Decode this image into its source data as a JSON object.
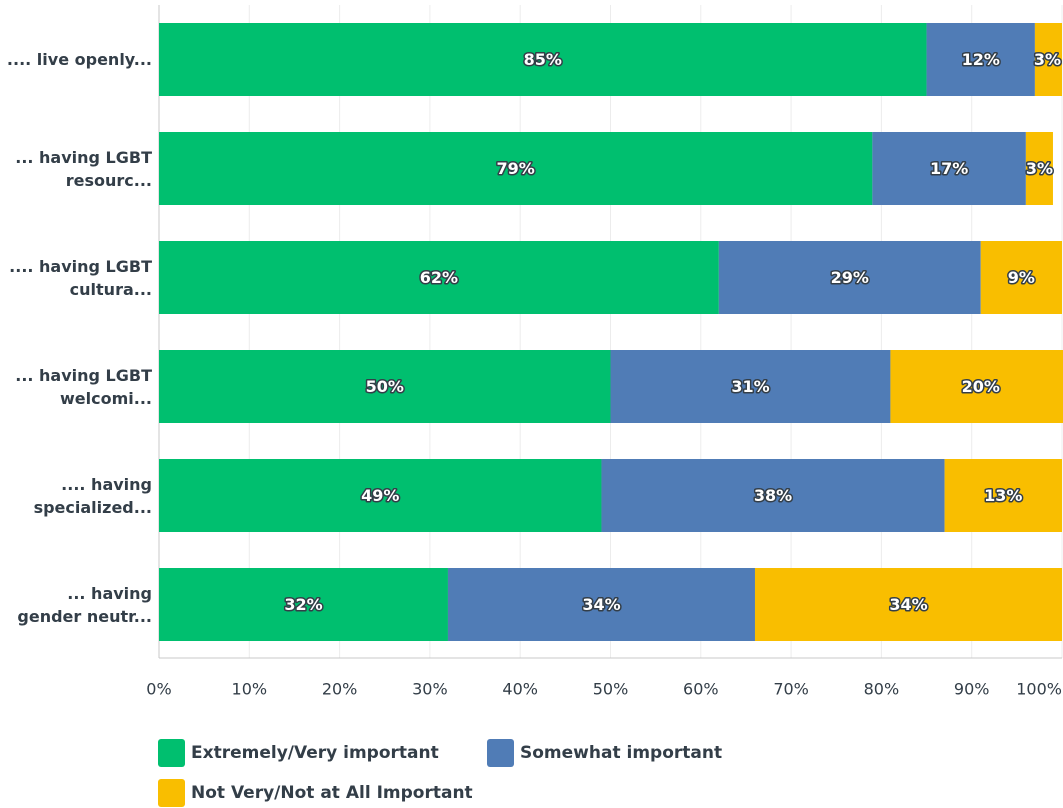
{
  "chart_data": {
    "type": "stacked-bar-horizontal",
    "categories": [
      ".... live openly...",
      "... having LGBT resourc...",
      ".... having LGBT cultura...",
      "... having LGBT welcomi...",
      ".... having specialized...",
      "... having gender neutr..."
    ],
    "series": [
      {
        "name": "Extremely/Very important",
        "color": "#00bf6f",
        "values": [
          85,
          79,
          62,
          50,
          49,
          32
        ],
        "value_labels": [
          "85%",
          "79%",
          "62%",
          "50%",
          "49%",
          "32%"
        ]
      },
      {
        "name": "Somewhat important",
        "color": "#507cb6",
        "values": [
          12,
          17,
          29,
          31,
          38,
          34
        ],
        "value_labels": [
          "12%",
          "17%",
          "29%",
          "31%",
          "38%",
          "34%"
        ]
      },
      {
        "name": "Not Very/Not at All Important",
        "color": "#f9be00",
        "values": [
          3,
          3,
          9,
          20,
          13,
          34
        ],
        "value_labels": [
          "3%",
          "3%",
          "9%",
          "20%",
          "13%",
          "34%"
        ]
      }
    ],
    "xlim": [
      0,
      100
    ],
    "xticks": [
      {
        "value": 0,
        "label": "0%"
      },
      {
        "value": 10,
        "label": "10%"
      },
      {
        "value": 20,
        "label": "20%"
      },
      {
        "value": 30,
        "label": "30%"
      },
      {
        "value": 40,
        "label": "40%"
      },
      {
        "value": 50,
        "label": "50%"
      },
      {
        "value": 60,
        "label": "60%"
      },
      {
        "value": 70,
        "label": "70%"
      },
      {
        "value": 80,
        "label": "80%"
      },
      {
        "value": 90,
        "label": "90%"
      },
      {
        "value": 100,
        "label": "100%"
      }
    ],
    "grid": true
  }
}
